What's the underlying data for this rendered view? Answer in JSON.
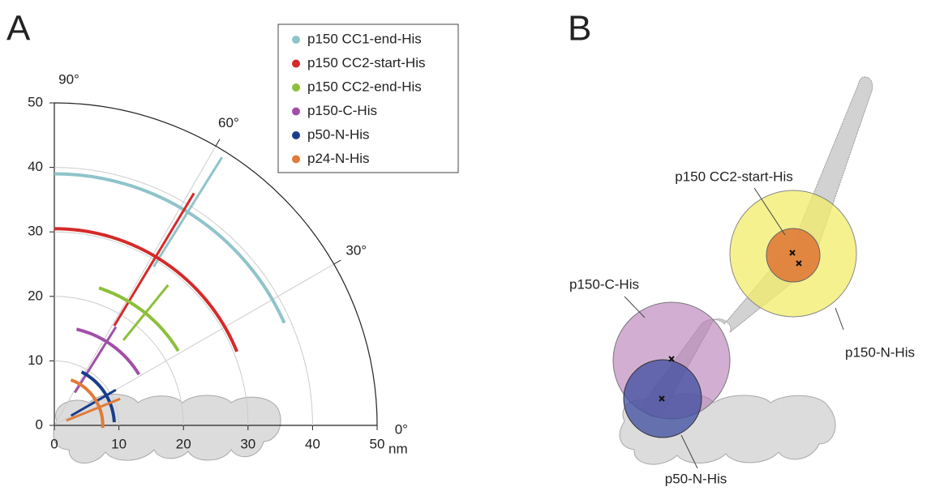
{
  "panels": [
    "A",
    "B"
  ],
  "chart_data": {
    "type": "polar-arcs",
    "unit": "nm",
    "rlim": [
      0,
      50
    ],
    "rticks": [
      0,
      10,
      20,
      30,
      40,
      50
    ],
    "angle_ticks": [
      {
        "value": 0,
        "label": "0°"
      },
      {
        "value": 30,
        "label": "30°"
      },
      {
        "value": 60,
        "label": "60°"
      },
      {
        "value": 90,
        "label": "90°"
      }
    ],
    "grid": true,
    "legend": "upper right",
    "series": [
      {
        "name": "p150 CC1-end-His",
        "color": "#8fc4c9",
        "radius": 39,
        "angle_range": [
          24,
          90
        ],
        "angle": 58,
        "radial_range": [
          29,
          49
        ]
      },
      {
        "name": "p150 CC2-start-His",
        "color": "#d42a2a",
        "radius": 30.5,
        "angle_range": [
          22,
          90
        ],
        "angle": 59,
        "radial_range": [
          18,
          42
        ]
      },
      {
        "name": "p150 CC2-end-His",
        "color": "#8cbf3a",
        "radius": 22.4,
        "angle_range": [
          31,
          72
        ],
        "angle": 51,
        "radial_range": [
          17,
          28
        ]
      },
      {
        "name": "p150-C-His",
        "color": "#a04fa8",
        "radius": 15.3,
        "angle_range": [
          31,
          77
        ],
        "angle": 58,
        "radial_range": [
          6,
          18
        ]
      },
      {
        "name": "p50-N-His",
        "color": "#1a3d8c",
        "radius": 9.3,
        "angle_range": [
          3,
          63
        ],
        "angle": 30,
        "radial_range": [
          3,
          11
        ]
      },
      {
        "name": "p24-N-His",
        "color": "#e07b39",
        "radius": 7.5,
        "angle_range": [
          -3,
          70
        ],
        "angle": 22,
        "radial_range": [
          2,
          11
        ]
      }
    ]
  },
  "diagram": {
    "labels": {
      "cc2_start": "p150 CC2-start-His",
      "c_his": "p150-C-His",
      "n_his": "p150-N-His",
      "p50": "p50-N-His"
    }
  }
}
